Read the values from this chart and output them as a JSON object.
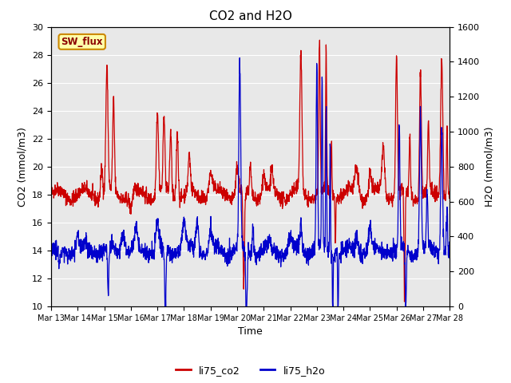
{
  "title": "CO2 and H2O",
  "xlabel": "Time",
  "ylabel_left": "CO2 (mmol/m3)",
  "ylabel_right": "H2O (mmol/m3)",
  "annotation": "SW_flux",
  "left_ylim": [
    10,
    30
  ],
  "right_ylim": [
    0,
    1600
  ],
  "left_yticks": [
    10,
    12,
    14,
    16,
    18,
    20,
    22,
    24,
    26,
    28,
    30
  ],
  "right_yticks": [
    0,
    200,
    400,
    600,
    800,
    1000,
    1200,
    1400,
    1600
  ],
  "xtick_labels": [
    "Mar 13",
    "Mar 14",
    "Mar 15",
    "Mar 16",
    "Mar 17",
    "Mar 18",
    "Mar 19",
    "Mar 20",
    "Mar 21",
    "Mar 22",
    "Mar 23",
    "Mar 24",
    "Mar 25",
    "Mar 26",
    "Mar 27",
    "Mar 28"
  ],
  "co2_color": "#cc0000",
  "h2o_color": "#0000cc",
  "bg_color": "#e8e8e8",
  "legend_co2": "li75_co2",
  "legend_h2o": "li75_h2o",
  "annotation_bg": "#ffffaa",
  "annotation_border": "#cc8800",
  "linewidth": 0.9
}
